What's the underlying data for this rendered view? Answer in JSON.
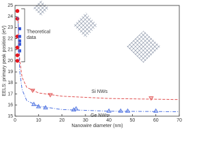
{
  "chart_data": {
    "type": "scatter",
    "xlabel": "Nanowire diameter (nm)",
    "ylabel": "EELS: primary peak position (eV)",
    "xlim": [
      0,
      70
    ],
    "xticks": [
      0,
      10,
      20,
      30,
      40,
      50,
      60,
      70
    ],
    "ylim": [
      15,
      25
    ],
    "yticks": [
      15,
      16,
      17,
      18,
      19,
      20,
      21,
      22,
      23,
      24,
      25
    ],
    "annotations": {
      "theory": [
        "Theoretical",
        "data"
      ],
      "si": "Si NWs",
      "ge": "Ge NWs"
    },
    "series": [
      {
        "marker": "circle",
        "color": "#e8141c",
        "x": [
          1,
          1,
          1,
          1,
          1,
          1
        ],
        "values": [
          24.5,
          23.8,
          22.2,
          21.2,
          20.5,
          20.0
        ]
      },
      {
        "marker": "square",
        "color": "#2a4fd6",
        "x": [
          1,
          1,
          1,
          1,
          1
        ],
        "values": [
          22.9,
          22.2,
          21.8,
          21.5,
          20.9
        ]
      },
      {
        "marker": "triangle-down",
        "color": "#e05050",
        "x": [
          7.5,
          15,
          58
        ],
        "values": [
          17.3,
          16.9,
          16.6
        ]
      },
      {
        "marker": "triangle-up",
        "color": "#4a6fe0",
        "x": [
          8,
          10,
          13,
          25,
          26,
          40,
          45,
          48,
          60
        ],
        "values": [
          16.1,
          15.9,
          15.8,
          15.6,
          15.7,
          15.5,
          15.5,
          15.5,
          15.5
        ]
      },
      {
        "marker": "line",
        "dash": "4 2",
        "color": "#e05050",
        "x": [
          1.2,
          2,
          3,
          5,
          10,
          20,
          40,
          70
        ],
        "values": [
          24,
          20,
          18.5,
          17.6,
          17.1,
          16.8,
          16.6,
          16.5
        ]
      },
      {
        "marker": "line",
        "dash": "5 2 1 2",
        "color": "#4a6fe0",
        "x": [
          1.2,
          2,
          3,
          5,
          10,
          20,
          40,
          70
        ],
        "values": [
          24,
          19,
          17.4,
          16.4,
          15.9,
          15.6,
          15.45,
          15.4
        ]
      }
    ]
  }
}
